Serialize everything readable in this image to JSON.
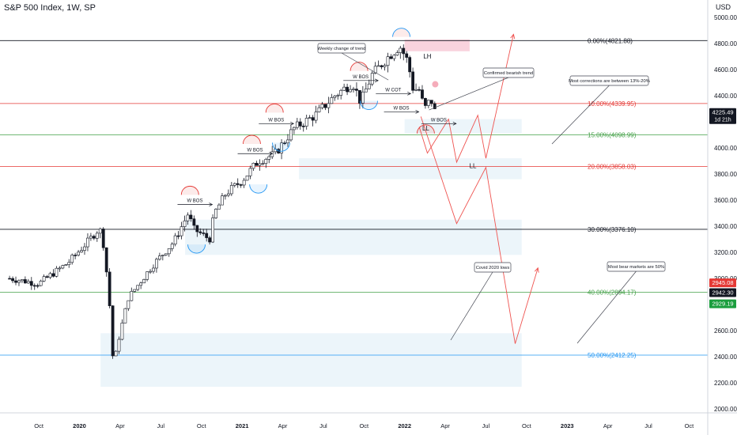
{
  "header": {
    "symbol": "S&P 500 Index, 1W, SP",
    "currency": "USD"
  },
  "colors": {
    "up": "#ffffff",
    "down": "#131722",
    "grid_black": "#131722",
    "fib_red": "#e53935",
    "fib_green": "#43a047",
    "fib_blue": "#2196f3",
    "zone": "#e6f2f8",
    "pink_zone": "#f8c8d4",
    "projection": "#ef5350"
  },
  "chart_data": {
    "type": "candlestick",
    "title": "S&P 500 Index, 1W, SP",
    "y_axis": {
      "ticks": [
        "5000.00",
        "4800.00",
        "4600.00",
        "4400.00",
        "4000.00",
        "3800.00",
        "3600.00",
        "3400.00",
        "3200.00",
        "3000.00",
        "2600.00",
        "2400.00",
        "2200.00",
        "2000.00"
      ],
      "tick_values": [
        5000,
        4800,
        4600,
        4400,
        4000,
        3800,
        3600,
        3400,
        3200,
        3000,
        2600,
        2400,
        2200,
        2000
      ],
      "ylim": [
        1970,
        5060
      ],
      "price_tags": [
        {
          "label": "4225.49",
          "sub": "1d 21h",
          "value": 4225.49,
          "color": "#131722"
        },
        {
          "label": "2945.08",
          "value": 2945.08,
          "color": "#e53935"
        },
        {
          "label": "2942.30",
          "value": 2942.3,
          "color": "#131722"
        },
        {
          "label": "2929.19",
          "value": 2929.19,
          "color": "#1b9e3e"
        }
      ]
    },
    "x_axis": {
      "labels": [
        "Oct",
        "2020",
        "Apr",
        "Jul",
        "Oct",
        "2021",
        "Apr",
        "Jul",
        "Oct",
        "2022",
        "Apr",
        "Jul",
        "Oct",
        "2023",
        "Apr",
        "Jul",
        "Oct"
      ],
      "label_dates": [
        2019.75,
        2020.0,
        2020.25,
        2020.5,
        2020.75,
        2021.0,
        2021.25,
        2021.5,
        2021.75,
        2022.0,
        2022.25,
        2022.5,
        2022.75,
        2023.0,
        2023.25,
        2023.5,
        2023.75
      ],
      "range": [
        2019.55,
        2023.85
      ]
    },
    "fib_levels": [
      {
        "label": "0.00%(4821.88)",
        "value": 4821.88,
        "color": "#131722"
      },
      {
        "label": "10.00%(4339.95)",
        "value": 4339.95,
        "color": "#e53935"
      },
      {
        "label": "15.00%(4098.99)",
        "value": 4098.99,
        "color": "#43a047"
      },
      {
        "label": "20.00%(3858.03)",
        "value": 3858.03,
        "color": "#e53935"
      },
      {
        "label": "30.00%(3376.10)",
        "value": 3376.1,
        "color": "#131722"
      },
      {
        "label": "40.00%(2894.17)",
        "value": 2894.17,
        "color": "#43a047"
      },
      {
        "label": "50.00%(2412.25)",
        "value": 2412.25,
        "color": "#2196f3"
      }
    ],
    "zones": [
      {
        "from": 2022.0,
        "to": 2022.72,
        "low": 4110,
        "high": 4220
      },
      {
        "from": 2021.35,
        "to": 2022.72,
        "low": 3760,
        "high": 3920
      },
      {
        "from": 2020.65,
        "to": 2022.72,
        "low": 3180,
        "high": 3450
      },
      {
        "from": 2020.13,
        "to": 2022.72,
        "low": 2170,
        "high": 2580
      }
    ],
    "pink_zone": {
      "from": 2022.0,
      "to": 2022.4,
      "low": 4740,
      "high": 4830
    },
    "annotations": [
      {
        "text": "Weekly change of trend"
      },
      {
        "text": "Confirmed bearish trend"
      },
      {
        "text": "Most corrections are between 13%-20%"
      },
      {
        "text": "Covid 2020 lows"
      },
      {
        "text": "Most bear markets are 50%"
      }
    ],
    "structure_labels": [
      {
        "text": "W BOS",
        "date": 2020.71,
        "value": 3590
      },
      {
        "text": "W BOS",
        "date": 2021.08,
        "value": 3980
      },
      {
        "text": "W BOS",
        "date": 2021.21,
        "value": 4210
      },
      {
        "text": "W BOS",
        "date": 2021.73,
        "value": 4540
      },
      {
        "text": "W COT",
        "date": 2021.93,
        "value": 4440
      },
      {
        "text": "W BOS",
        "date": 2021.98,
        "value": 4300
      },
      {
        "text": "W BOS",
        "date": 2022.21,
        "value": 4210
      },
      {
        "text": "LH",
        "date": 2022.14,
        "value": 4690
      },
      {
        "text": "LL",
        "date": 2022.13,
        "value": 4140
      },
      {
        "text": "LL",
        "date": 2022.42,
        "value": 3850
      }
    ],
    "projections": [
      {
        "points": [
          [
            2022.09,
            4160
          ],
          [
            2022.14,
            3960
          ],
          [
            2022.27,
            4220
          ],
          [
            2022.32,
            3890
          ],
          [
            2022.45,
            4250
          ],
          [
            2022.5,
            3920
          ],
          [
            2022.67,
            4870
          ]
        ]
      },
      {
        "points": [
          [
            2022.1,
            4240
          ],
          [
            2022.32,
            3420
          ],
          [
            2022.5,
            3850
          ],
          [
            2022.68,
            2500
          ],
          [
            2022.82,
            3080
          ]
        ]
      }
    ]
  }
}
